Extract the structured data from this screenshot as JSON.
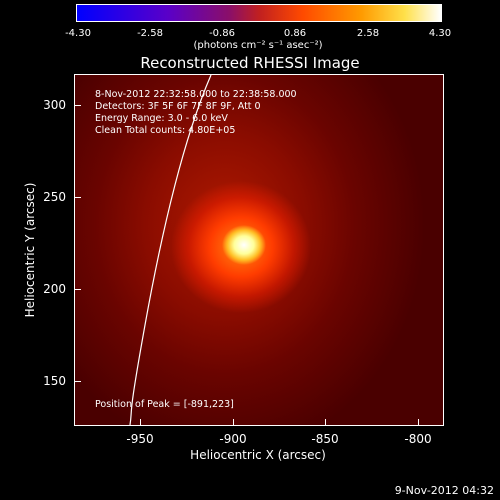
{
  "colorbar": {
    "ticks": [
      "-4.30",
      "-2.58",
      "-0.86",
      "0.86",
      "2.58",
      "4.30"
    ],
    "units": "(photons cm⁻² s⁻¹ asec⁻²)"
  },
  "title": "Reconstructed RHESSI Image",
  "info": {
    "time": "8-Nov-2012 22:32:58.000 to 22:38:58.000",
    "detectors": "Detectors: 3F 5F 6F 7F 8F 9F, Att 0",
    "energy": "Energy Range: 3.0 - 6.0 keV",
    "clean": "Clean    Total counts: 4.80E+05",
    "peak": "Position of Peak = [-891,223]"
  },
  "axes": {
    "xlabel": "Heliocentric X (arcsec)",
    "ylabel": "Heliocentric Y (arcsec)",
    "xticks": [
      "-950",
      "-900",
      "-850",
      "-800"
    ],
    "yticks": [
      "300",
      "250",
      "200",
      "150"
    ],
    "xrange": [
      -985,
      -795
    ],
    "yrange": [
      125,
      315
    ]
  },
  "footer": "9-Nov-2012 04:32",
  "colors": {
    "limb": "#ffffff",
    "peak": "#ffffff"
  }
}
